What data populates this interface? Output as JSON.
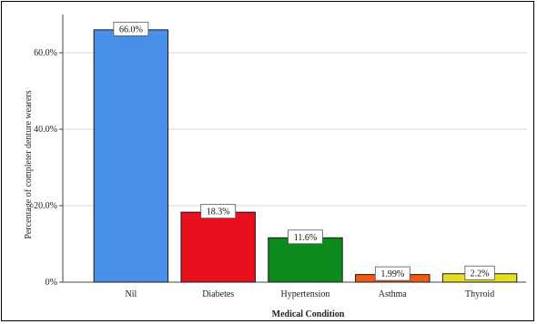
{
  "chart_data": {
    "type": "bar",
    "title": "",
    "xlabel": "Medical Condition",
    "ylabel": "Percentage of completer denture wearers",
    "categories": [
      "Nil",
      "Diabetes",
      "Hypertension",
      "Asthma",
      "Thyroid"
    ],
    "values": [
      66.0,
      18.3,
      11.6,
      1.99,
      2.2
    ],
    "data_labels": [
      "66.0%",
      "18.3%",
      "11.6%",
      "1.99%",
      "2.2%"
    ],
    "colors": [
      "#4a8fe8",
      "#e8101c",
      "#0c8a1c",
      "#f05a10",
      "#e4e020"
    ],
    "ylim": [
      0,
      70
    ],
    "yticks": [
      0,
      20,
      40,
      60
    ],
    "ytick_labels": [
      "0%",
      "20.0%",
      "40.0%",
      "60.0%"
    ],
    "grid": true,
    "legend": "none"
  }
}
